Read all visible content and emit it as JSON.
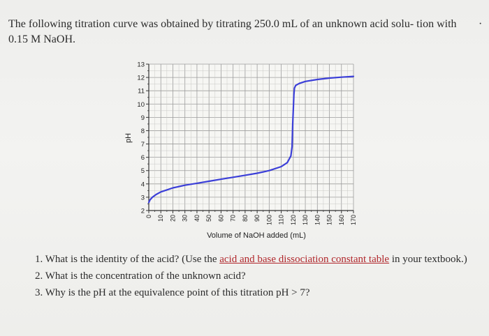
{
  "intro": {
    "text": "The following titration curve was obtained by titrating 250.0 mL of an unknown acid solu- tion with 0.15 M NaOH.",
    "tail_mark": "·"
  },
  "chart_data": {
    "type": "line",
    "xlabel": "Volume of NaOH added (mL)",
    "ylabel": "pH",
    "xlim": [
      0,
      170
    ],
    "ylim": [
      2,
      13
    ],
    "xticks": [
      0,
      10,
      20,
      30,
      40,
      50,
      60,
      70,
      80,
      90,
      100,
      110,
      120,
      130,
      140,
      150,
      160,
      170
    ],
    "yticks": [
      2,
      3,
      4,
      5,
      6,
      7,
      8,
      9,
      10,
      11,
      12,
      13
    ],
    "grid": true,
    "line_color": "#3b3fd8",
    "series": [
      {
        "x": [
          0,
          1,
          3,
          6,
          10,
          15,
          20,
          30,
          40,
          50,
          60,
          70,
          80,
          90,
          100,
          110,
          115,
          118,
          119,
          119.5,
          120,
          120.5,
          121,
          122,
          125,
          130,
          140,
          150,
          160,
          170
        ],
        "y": [
          2.6,
          2.8,
          3.0,
          3.2,
          3.4,
          3.55,
          3.7,
          3.9,
          4.05,
          4.2,
          4.35,
          4.5,
          4.65,
          4.8,
          5.0,
          5.3,
          5.6,
          6.1,
          6.8,
          8.5,
          9.5,
          10.7,
          11.2,
          11.4,
          11.55,
          11.7,
          11.85,
          11.95,
          12.02,
          12.08
        ]
      }
    ]
  },
  "questions": [
    {
      "number": "1.",
      "before": "What is the identity of the acid? (Use the ",
      "link": "acid and base dissociation constant table",
      "after": " in your textbook.)"
    },
    {
      "number": "2.",
      "text": "What is the concentration of the unknown acid?"
    },
    {
      "number": "3.",
      "text": "Why is the pH at the equivalence point of this titration pH > 7?"
    }
  ]
}
